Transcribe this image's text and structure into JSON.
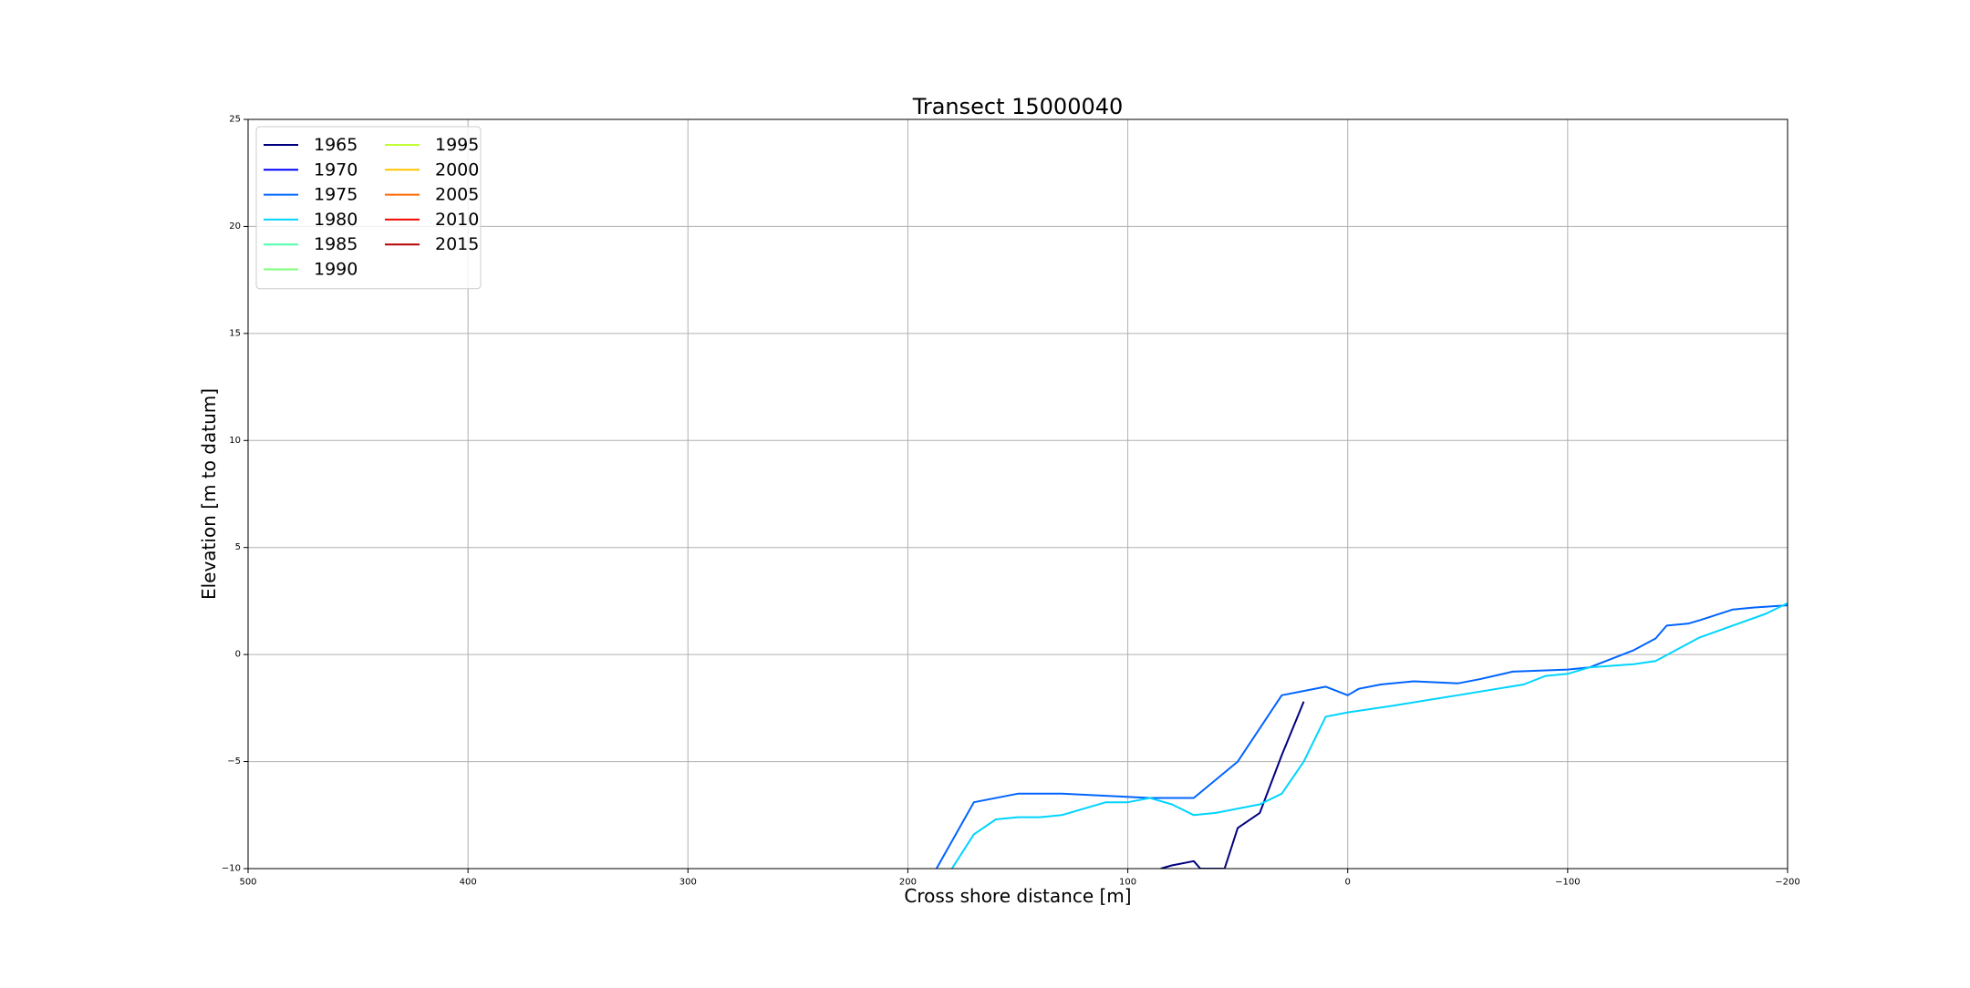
{
  "chart_data": {
    "type": "line",
    "title": "Transect 15000040",
    "xlabel": "Cross shore distance [m]",
    "ylabel": "Elevation [m to datum]",
    "xlim": [
      500,
      -200
    ],
    "ylim": [
      -10,
      25
    ],
    "x_ticks": [
      500,
      400,
      300,
      200,
      100,
      0,
      -100,
      -200
    ],
    "x_tick_labels": [
      "500",
      "400",
      "300",
      "200",
      "100",
      "0",
      "−100",
      "−200"
    ],
    "y_ticks": [
      -10,
      -5,
      0,
      5,
      10,
      15,
      20,
      25
    ],
    "y_tick_labels": [
      "−10",
      "−5",
      "0",
      "5",
      "10",
      "15",
      "20",
      "25"
    ],
    "grid": true,
    "legend_position": "top-left",
    "legend_columns": 2,
    "series": [
      {
        "name": "1965",
        "color": "#00007f",
        "points": [
          [
            85,
            -10
          ],
          [
            80,
            -9.85
          ],
          [
            70,
            -9.65
          ],
          [
            67,
            -10
          ],
          [
            56,
            -10
          ],
          [
            50,
            -8.1
          ],
          [
            40,
            -7.4
          ],
          [
            30,
            -4.7
          ],
          [
            20,
            -2.2
          ]
        ]
      },
      {
        "name": "1970",
        "color": "#0000ff",
        "points": []
      },
      {
        "name": "1975",
        "color": "#0064ff",
        "points": [
          [
            187,
            -10
          ],
          [
            170,
            -6.9
          ],
          [
            150,
            -6.5
          ],
          [
            130,
            -6.5
          ],
          [
            110,
            -6.6
          ],
          [
            90,
            -6.7
          ],
          [
            70,
            -6.7
          ],
          [
            50,
            -5
          ],
          [
            30,
            -1.9
          ],
          [
            10,
            -1.5
          ],
          [
            0,
            -1.9
          ],
          [
            -5,
            -1.6
          ],
          [
            -15,
            -1.4
          ],
          [
            -30,
            -1.25
          ],
          [
            -50,
            -1.35
          ],
          [
            -60,
            -1.15
          ],
          [
            -75,
            -0.8
          ],
          [
            -100,
            -0.7
          ],
          [
            -110,
            -0.6
          ],
          [
            -130,
            0.2
          ],
          [
            -140,
            0.75
          ],
          [
            -145,
            1.35
          ],
          [
            -155,
            1.45
          ],
          [
            -160,
            1.6
          ],
          [
            -175,
            2.1
          ],
          [
            -185,
            2.2
          ],
          [
            -200,
            2.3
          ]
        ]
      },
      {
        "name": "1980",
        "color": "#00d4ff",
        "points": [
          [
            180,
            -10
          ],
          [
            170,
            -8.4
          ],
          [
            160,
            -7.7
          ],
          [
            150,
            -7.6
          ],
          [
            140,
            -7.6
          ],
          [
            130,
            -7.5
          ],
          [
            110,
            -6.9
          ],
          [
            100,
            -6.9
          ],
          [
            90,
            -6.7
          ],
          [
            80,
            -7
          ],
          [
            70,
            -7.5
          ],
          [
            60,
            -7.4
          ],
          [
            40,
            -7
          ],
          [
            30,
            -6.5
          ],
          [
            20,
            -5
          ],
          [
            10,
            -2.9
          ],
          [
            0,
            -2.7
          ],
          [
            -20,
            -2.4
          ],
          [
            -50,
            -1.9
          ],
          [
            -80,
            -1.4
          ],
          [
            -90,
            -1.0
          ],
          [
            -100,
            -0.9
          ],
          [
            -110,
            -0.6
          ],
          [
            -130,
            -0.45
          ],
          [
            -140,
            -0.3
          ],
          [
            -160,
            0.8
          ],
          [
            -190,
            1.9
          ],
          [
            -200,
            2.4
          ]
        ]
      },
      {
        "name": "1985",
        "color": "#4cffaa",
        "points": []
      },
      {
        "name": "1990",
        "color": "#7dff7a",
        "points": []
      },
      {
        "name": "1995",
        "color": "#c1ff36",
        "points": []
      },
      {
        "name": "2000",
        "color": "#ffc400",
        "points": []
      },
      {
        "name": "2005",
        "color": "#ff6800",
        "points": []
      },
      {
        "name": "2010",
        "color": "#f10800",
        "points": []
      },
      {
        "name": "2015",
        "color": "#b50000",
        "points": []
      }
    ]
  }
}
